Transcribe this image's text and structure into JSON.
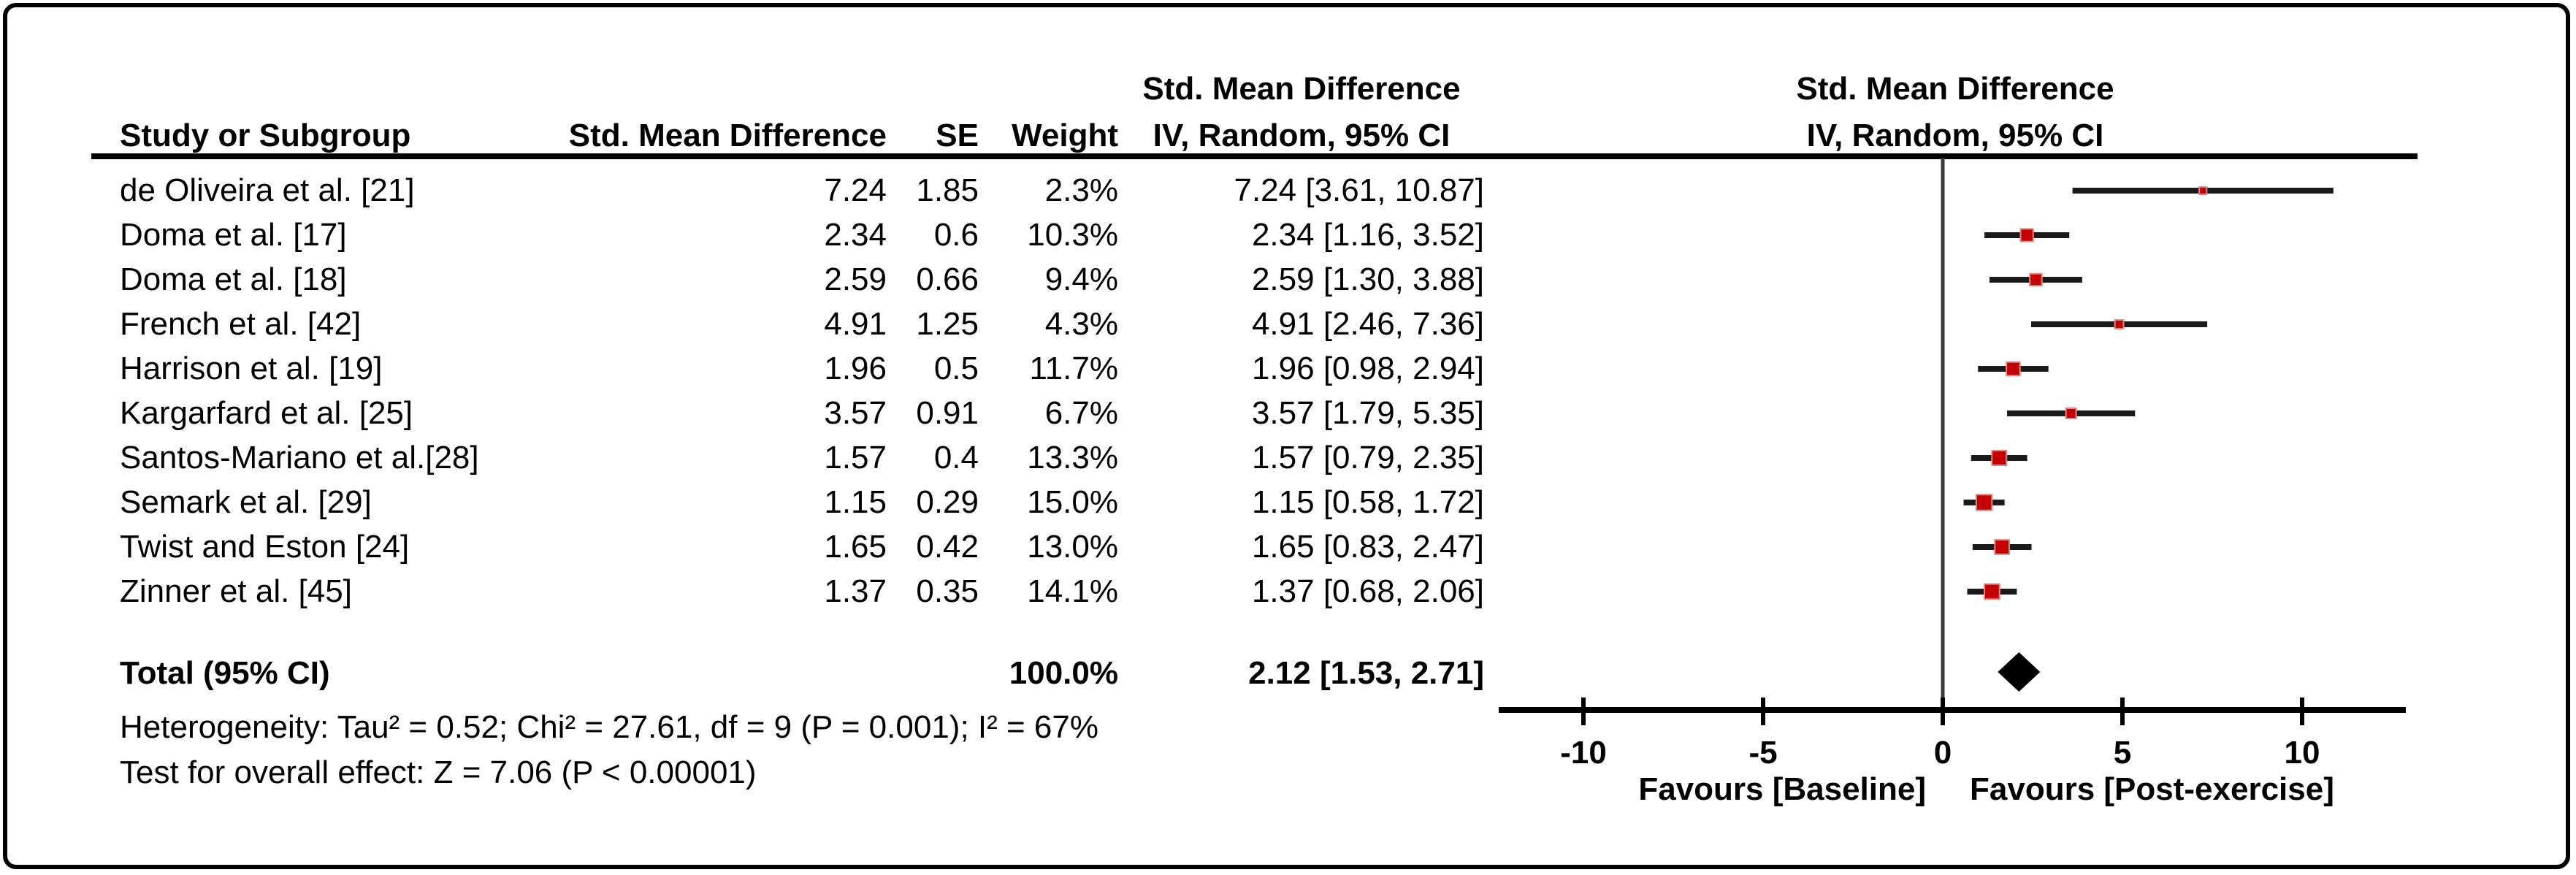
{
  "colors": {
    "marker": "#c40000",
    "marker_edge": "#da8c84",
    "ci_line": "#1a1a1a",
    "diamond": "#000000",
    "zero_line": "#3a3a3a",
    "axis": "#000000",
    "text": "#000000",
    "background": "#ffffff"
  },
  "header": {
    "col_study": "Study or Subgroup",
    "col_smd": "Std. Mean Difference",
    "col_se": "SE",
    "col_weight": "Weight",
    "col_ci_line1": "Std. Mean Difference",
    "col_ci_line2": "IV, Random, 95% CI",
    "plot_line1": "Std. Mean Difference",
    "plot_line2": "IV, Random, 95% CI"
  },
  "chart_data": {
    "type": "scatter",
    "variant": "forest-plot",
    "effect_measure": "Std. Mean Difference",
    "model": "IV, Random, 95% CI",
    "studies": [
      {
        "name": "de Oliveira et al. [21]",
        "smd": "7.24",
        "se": "1.85",
        "weight": "2.3%",
        "weight_pct": 2.3,
        "ci": "7.24 [3.61, 10.87]",
        "est": 7.24,
        "lo": 3.61,
        "hi": 10.87
      },
      {
        "name": "Doma et al. [17]",
        "smd": "2.34",
        "se": "0.6",
        "weight": "10.3%",
        "weight_pct": 10.3,
        "ci": "2.34 [1.16, 3.52]",
        "est": 2.34,
        "lo": 1.16,
        "hi": 3.52
      },
      {
        "name": "Doma et al. [18]",
        "smd": "2.59",
        "se": "0.66",
        "weight": "9.4%",
        "weight_pct": 9.4,
        "ci": "2.59 [1.30, 3.88]",
        "est": 2.59,
        "lo": 1.3,
        "hi": 3.88
      },
      {
        "name": "French et al. [42]",
        "smd": "4.91",
        "se": "1.25",
        "weight": "4.3%",
        "weight_pct": 4.3,
        "ci": "4.91 [2.46, 7.36]",
        "est": 4.91,
        "lo": 2.46,
        "hi": 7.36
      },
      {
        "name": "Harrison et al. [19]",
        "smd": "1.96",
        "se": "0.5",
        "weight": "11.7%",
        "weight_pct": 11.7,
        "ci": "1.96 [0.98, 2.94]",
        "est": 1.96,
        "lo": 0.98,
        "hi": 2.94
      },
      {
        "name": "Kargarfard et al. [25]",
        "smd": "3.57",
        "se": "0.91",
        "weight": "6.7%",
        "weight_pct": 6.7,
        "ci": "3.57 [1.79, 5.35]",
        "est": 3.57,
        "lo": 1.79,
        "hi": 5.35
      },
      {
        "name": "Santos-Mariano et al.[28]",
        "smd": "1.57",
        "se": "0.4",
        "weight": "13.3%",
        "weight_pct": 13.3,
        "ci": "1.57 [0.79, 2.35]",
        "est": 1.57,
        "lo": 0.79,
        "hi": 2.35
      },
      {
        "name": "Semark et al. [29]",
        "smd": "1.15",
        "se": "0.29",
        "weight": "15.0%",
        "weight_pct": 15.0,
        "ci": "1.15 [0.58, 1.72]",
        "est": 1.15,
        "lo": 0.58,
        "hi": 1.72
      },
      {
        "name": "Twist and Eston [24]",
        "smd": "1.65",
        "se": "0.42",
        "weight": "13.0%",
        "weight_pct": 13.0,
        "ci": "1.65 [0.83, 2.47]",
        "est": 1.65,
        "lo": 0.83,
        "hi": 2.47
      },
      {
        "name": "Zinner et al. [45]",
        "smd": "1.37",
        "se": "0.35",
        "weight": "14.1%",
        "weight_pct": 14.1,
        "ci": "1.37 [0.68, 2.06]",
        "est": 1.37,
        "lo": 0.68,
        "hi": 2.06
      }
    ],
    "total": {
      "label": "Total (95% CI)",
      "weight": "100.0%",
      "ci": "2.12 [1.53, 2.71]",
      "est": 2.12,
      "lo": 1.53,
      "hi": 2.71
    },
    "heterogeneity": "Heterogeneity: Tau² = 0.52; Chi² = 27.61, df = 9 (P = 0.001); I² = 67%",
    "overall_effect": "Test for overall effect: Z = 7.06 (P < 0.00001)",
    "axis": {
      "ticks": [
        -10,
        -5,
        0,
        5,
        10
      ],
      "xlim": [
        -12.4,
        12.9
      ],
      "zero_line": 0,
      "grid": false,
      "label_left": "Favours [Baseline]",
      "label_right": "Favours [Post-exercise]"
    }
  }
}
